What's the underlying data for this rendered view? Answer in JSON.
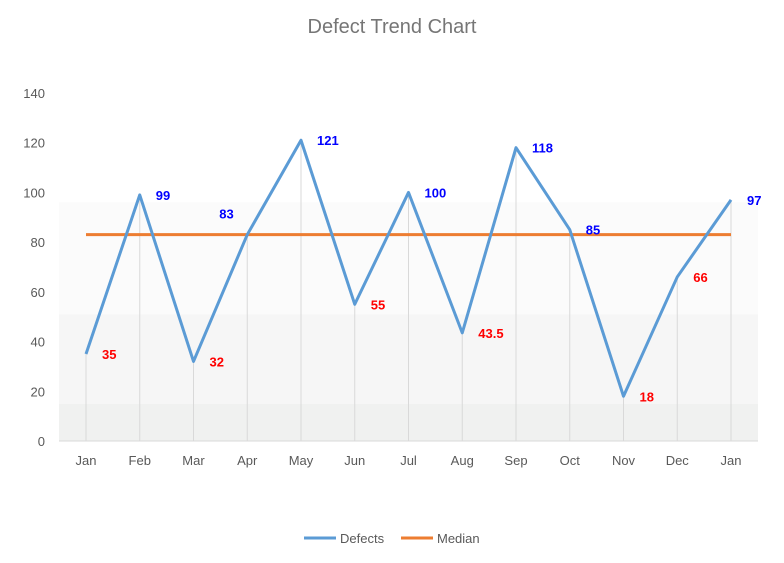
{
  "chart_data": {
    "type": "line",
    "title": "Defect Trend Chart",
    "categories": [
      "Jan",
      "Feb",
      "Mar",
      "Apr",
      "May",
      "Jun",
      "Jul",
      "Aug",
      "Sep",
      "Oct",
      "Nov",
      "Dec",
      "Jan"
    ],
    "series": [
      {
        "name": "Defects",
        "color": "#5b9bd5",
        "values": [
          35,
          99,
          32,
          83,
          121,
          55,
          100,
          43.5,
          118,
          85,
          18,
          66,
          97
        ]
      },
      {
        "name": "Median",
        "color": "#ed7d31",
        "values": [
          83,
          83,
          83,
          83,
          83,
          83,
          83,
          83,
          83,
          83,
          83,
          83,
          83
        ]
      }
    ],
    "data_label_colors": {
      "above_median": "#0000ff",
      "below_median": "#ff0000"
    },
    "background_bands": [
      {
        "from": 0,
        "to": 15,
        "color": "#f0f1f0"
      },
      {
        "from": 15,
        "to": 51,
        "color": "#f6f6f6"
      },
      {
        "from": 51,
        "to": 96,
        "color": "#fbfbfb"
      }
    ],
    "ylim": [
      0,
      140
    ],
    "yticks": [
      0,
      20,
      40,
      60,
      80,
      100,
      120,
      140
    ],
    "xlabel": "",
    "ylabel": "",
    "drop_lines": true,
    "grid": false,
    "legend": "bottom"
  }
}
